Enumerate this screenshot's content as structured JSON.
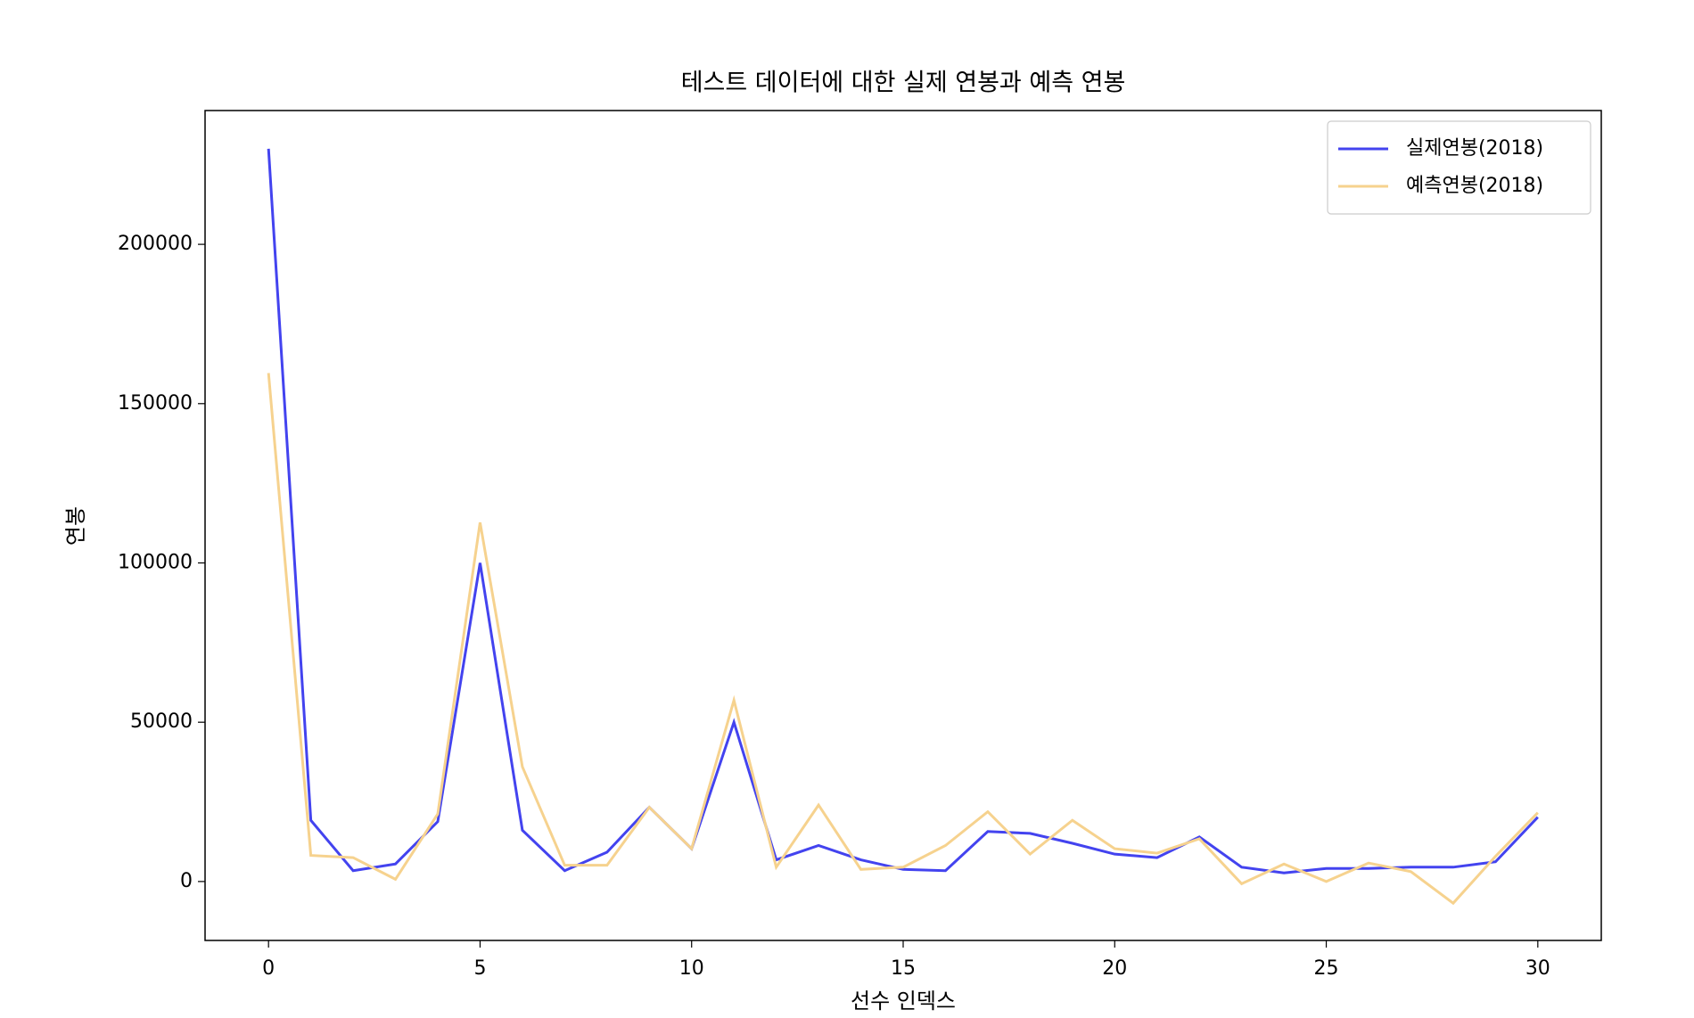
{
  "chart_data": {
    "type": "line",
    "title": "테스트 데이터에 대한 실제 연봉과 예측 연봉",
    "x_label": "선수 인덱스",
    "y_label": "연봉",
    "x": [
      0,
      1,
      2,
      3,
      4,
      5,
      6,
      7,
      8,
      9,
      10,
      11,
      12,
      13,
      14,
      15,
      16,
      17,
      18,
      19,
      20,
      21,
      22,
      23,
      24,
      25,
      26,
      27,
      28,
      29,
      30
    ],
    "series": [
      {
        "name": "실제연봉(2018)",
        "color": "#4343ef",
        "values": [
          230000,
          19200,
          3400,
          5500,
          18800,
          100000,
          16100,
          3400,
          9200,
          23300,
          10300,
          50000,
          6800,
          11300,
          6800,
          3800,
          3400,
          15700,
          15100,
          12000,
          8600,
          7500,
          14000,
          4500,
          2700,
          4100,
          4100,
          4500,
          4500,
          6200,
          20200
        ]
      },
      {
        "name": "예측연봉(2018)",
        "color": "#f6d28e",
        "values": [
          159600,
          8200,
          7500,
          700,
          21200,
          112700,
          36000,
          5100,
          5100,
          23300,
          10300,
          56900,
          4500,
          24000,
          3800,
          4500,
          11300,
          21900,
          8600,
          19200,
          10300,
          8900,
          13400,
          -700,
          5500,
          0,
          5800,
          3100,
          -6800,
          7900,
          21600
        ]
      }
    ],
    "xlim": [
      -1.5,
      31.5
    ],
    "ylim": [
      -18500,
      242000
    ],
    "xticks": [
      0,
      5,
      10,
      15,
      20,
      25,
      30
    ],
    "yticks": [
      0,
      50000,
      100000,
      150000,
      200000
    ],
    "legend": "upper right"
  }
}
